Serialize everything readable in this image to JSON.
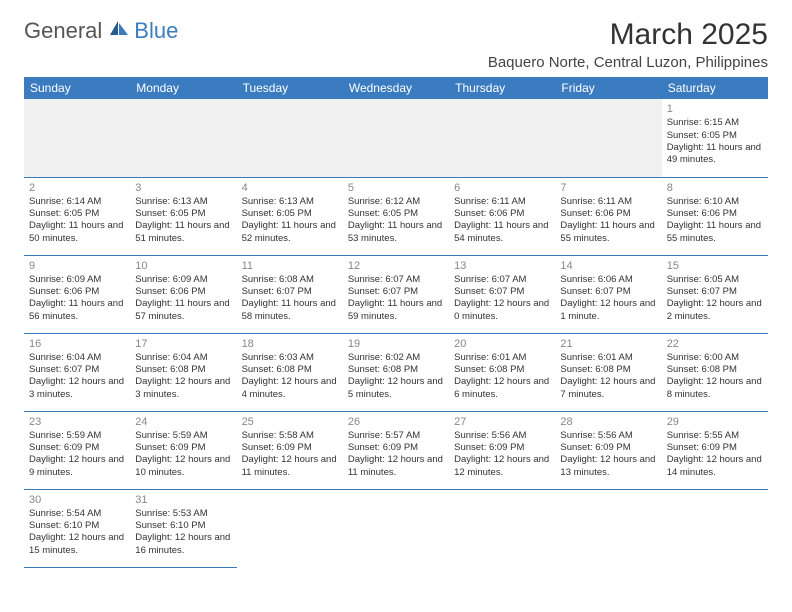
{
  "logo": {
    "part1": "General",
    "part2": "Blue"
  },
  "title": "March 2025",
  "location": "Baquero Norte, Central Luzon, Philippines",
  "colors": {
    "header_bg": "#3b7bbf",
    "header_fg": "#ffffff",
    "body_text": "#333333",
    "daynum": "#888888",
    "row_border": "#3b7bbf",
    "blank_bg": "#f0f0f0",
    "logo_gray": "#555555",
    "logo_blue": "#3b7bbf"
  },
  "typography": {
    "title_fontsize": 30,
    "location_fontsize": 15,
    "th_fontsize": 12,
    "cell_fontsize": 9.5,
    "daynum_fontsize": 11
  },
  "calendar": {
    "type": "calendar-table",
    "columns": [
      "Sunday",
      "Monday",
      "Tuesday",
      "Wednesday",
      "Thursday",
      "Friday",
      "Saturday"
    ],
    "first_day_col": 6,
    "days": [
      {
        "n": 1,
        "sr": "6:15 AM",
        "ss": "6:05 PM",
        "dl": "11 hours and 49 minutes."
      },
      {
        "n": 2,
        "sr": "6:14 AM",
        "ss": "6:05 PM",
        "dl": "11 hours and 50 minutes."
      },
      {
        "n": 3,
        "sr": "6:13 AM",
        "ss": "6:05 PM",
        "dl": "11 hours and 51 minutes."
      },
      {
        "n": 4,
        "sr": "6:13 AM",
        "ss": "6:05 PM",
        "dl": "11 hours and 52 minutes."
      },
      {
        "n": 5,
        "sr": "6:12 AM",
        "ss": "6:05 PM",
        "dl": "11 hours and 53 minutes."
      },
      {
        "n": 6,
        "sr": "6:11 AM",
        "ss": "6:06 PM",
        "dl": "11 hours and 54 minutes."
      },
      {
        "n": 7,
        "sr": "6:11 AM",
        "ss": "6:06 PM",
        "dl": "11 hours and 55 minutes."
      },
      {
        "n": 8,
        "sr": "6:10 AM",
        "ss": "6:06 PM",
        "dl": "11 hours and 55 minutes."
      },
      {
        "n": 9,
        "sr": "6:09 AM",
        "ss": "6:06 PM",
        "dl": "11 hours and 56 minutes."
      },
      {
        "n": 10,
        "sr": "6:09 AM",
        "ss": "6:06 PM",
        "dl": "11 hours and 57 minutes."
      },
      {
        "n": 11,
        "sr": "6:08 AM",
        "ss": "6:07 PM",
        "dl": "11 hours and 58 minutes."
      },
      {
        "n": 12,
        "sr": "6:07 AM",
        "ss": "6:07 PM",
        "dl": "11 hours and 59 minutes."
      },
      {
        "n": 13,
        "sr": "6:07 AM",
        "ss": "6:07 PM",
        "dl": "12 hours and 0 minutes."
      },
      {
        "n": 14,
        "sr": "6:06 AM",
        "ss": "6:07 PM",
        "dl": "12 hours and 1 minute."
      },
      {
        "n": 15,
        "sr": "6:05 AM",
        "ss": "6:07 PM",
        "dl": "12 hours and 2 minutes."
      },
      {
        "n": 16,
        "sr": "6:04 AM",
        "ss": "6:07 PM",
        "dl": "12 hours and 3 minutes."
      },
      {
        "n": 17,
        "sr": "6:04 AM",
        "ss": "6:08 PM",
        "dl": "12 hours and 3 minutes."
      },
      {
        "n": 18,
        "sr": "6:03 AM",
        "ss": "6:08 PM",
        "dl": "12 hours and 4 minutes."
      },
      {
        "n": 19,
        "sr": "6:02 AM",
        "ss": "6:08 PM",
        "dl": "12 hours and 5 minutes."
      },
      {
        "n": 20,
        "sr": "6:01 AM",
        "ss": "6:08 PM",
        "dl": "12 hours and 6 minutes."
      },
      {
        "n": 21,
        "sr": "6:01 AM",
        "ss": "6:08 PM",
        "dl": "12 hours and 7 minutes."
      },
      {
        "n": 22,
        "sr": "6:00 AM",
        "ss": "6:08 PM",
        "dl": "12 hours and 8 minutes."
      },
      {
        "n": 23,
        "sr": "5:59 AM",
        "ss": "6:09 PM",
        "dl": "12 hours and 9 minutes."
      },
      {
        "n": 24,
        "sr": "5:59 AM",
        "ss": "6:09 PM",
        "dl": "12 hours and 10 minutes."
      },
      {
        "n": 25,
        "sr": "5:58 AM",
        "ss": "6:09 PM",
        "dl": "12 hours and 11 minutes."
      },
      {
        "n": 26,
        "sr": "5:57 AM",
        "ss": "6:09 PM",
        "dl": "12 hours and 11 minutes."
      },
      {
        "n": 27,
        "sr": "5:56 AM",
        "ss": "6:09 PM",
        "dl": "12 hours and 12 minutes."
      },
      {
        "n": 28,
        "sr": "5:56 AM",
        "ss": "6:09 PM",
        "dl": "12 hours and 13 minutes."
      },
      {
        "n": 29,
        "sr": "5:55 AM",
        "ss": "6:09 PM",
        "dl": "12 hours and 14 minutes."
      },
      {
        "n": 30,
        "sr": "5:54 AM",
        "ss": "6:10 PM",
        "dl": "12 hours and 15 minutes."
      },
      {
        "n": 31,
        "sr": "5:53 AM",
        "ss": "6:10 PM",
        "dl": "12 hours and 16 minutes."
      }
    ],
    "labels": {
      "sunrise": "Sunrise:",
      "sunset": "Sunset:",
      "daylight": "Daylight:"
    }
  }
}
